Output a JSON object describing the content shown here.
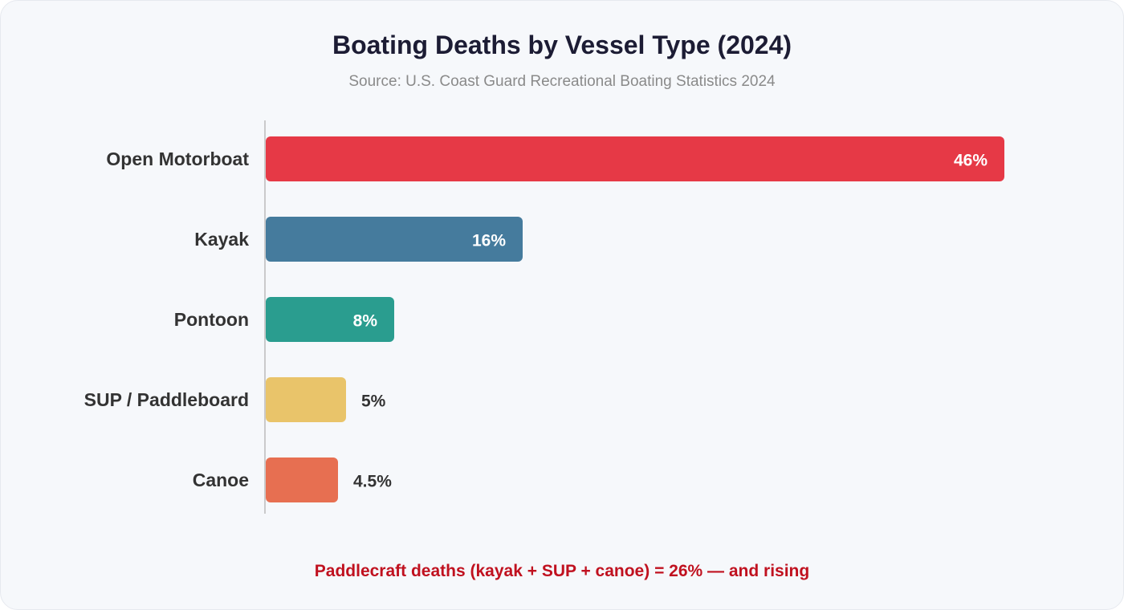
{
  "header": {
    "title": "Boating Deaths by Vessel Type (2024)",
    "subtitle": "Source: U.S. Coast Guard Recreational Boating Statistics 2024"
  },
  "footnote": "Paddlecraft deaths (kayak + SUP + canoe) = 26% — and rising",
  "chart_data": {
    "type": "bar",
    "orientation": "horizontal",
    "title": "Boating Deaths by Vessel Type (2024)",
    "subtitle": "Source: U.S. Coast Guard Recreational Boating Statistics 2024",
    "categories": [
      "Open Motorboat",
      "Kayak",
      "Pontoon",
      "SUP / Paddleboard",
      "Canoe"
    ],
    "values": [
      46,
      16,
      8,
      5,
      4.5
    ],
    "value_labels": [
      "46%",
      "16%",
      "8%",
      "5%",
      "4.5%"
    ],
    "colors": [
      "#e63946",
      "#457b9d",
      "#2a9d8f",
      "#e9c46a",
      "#e76f51"
    ],
    "label_colors": [
      "#ffffff",
      "#ffffff",
      "#ffffff",
      "#333333",
      "#333333"
    ],
    "xlim": [
      0,
      50
    ],
    "grid": false,
    "legend": "none"
  }
}
